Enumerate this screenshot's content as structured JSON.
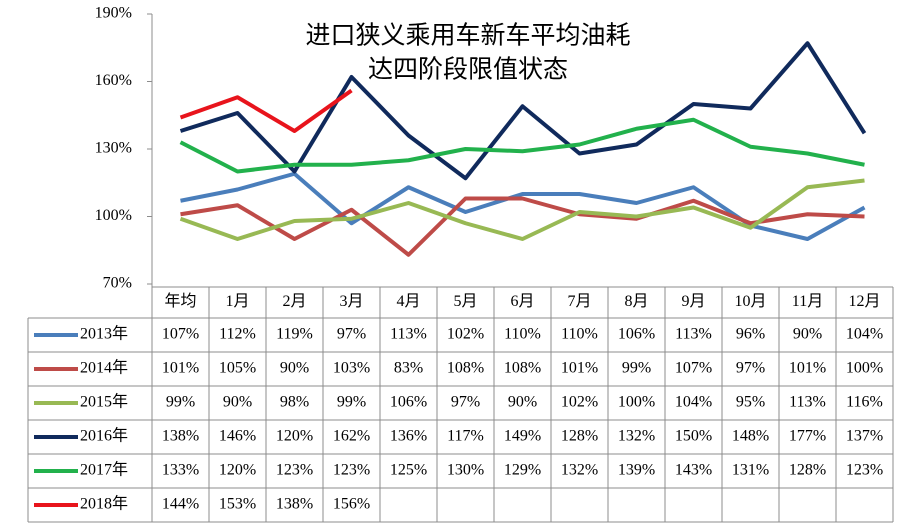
{
  "chart_data": {
    "type": "line",
    "title": [
      "进口狭义乘用车新车平均油耗",
      "达四阶段限值状态"
    ],
    "categories": [
      "年均",
      "1月",
      "2月",
      "3月",
      "4月",
      "5月",
      "6月",
      "7月",
      "8月",
      "9月",
      "10月",
      "11月",
      "12月"
    ],
    "ylim": [
      70,
      190
    ],
    "yticks": [
      {
        "value": 70,
        "label": "70%"
      },
      {
        "value": 100,
        "label": "100%"
      },
      {
        "value": 130,
        "label": "130%"
      },
      {
        "value": 160,
        "label": "160%"
      },
      {
        "value": 190,
        "label": "190%"
      }
    ],
    "grid": false,
    "series": [
      {
        "name": "2013年",
        "color": "#4a7ebb",
        "values": [
          107,
          112,
          119,
          97,
          113,
          102,
          110,
          110,
          106,
          113,
          96,
          90,
          104
        ],
        "value_labels": [
          "107%",
          "112%",
          "119%",
          "97%",
          "113%",
          "102%",
          "110%",
          "110%",
          "106%",
          "113%",
          "96%",
          "90%",
          "104%"
        ]
      },
      {
        "name": "2014年",
        "color": "#be4b48",
        "values": [
          101,
          105,
          90,
          103,
          83,
          108,
          108,
          101,
          99,
          107,
          97,
          101,
          100
        ],
        "value_labels": [
          "101%",
          "105%",
          "90%",
          "103%",
          "83%",
          "108%",
          "108%",
          "101%",
          "99%",
          "107%",
          "97%",
          "101%",
          "100%"
        ]
      },
      {
        "name": "2015年",
        "color": "#98b954",
        "values": [
          99,
          90,
          98,
          99,
          106,
          97,
          90,
          102,
          100,
          104,
          95,
          113,
          116
        ],
        "value_labels": [
          "99%",
          "90%",
          "98%",
          "99%",
          "106%",
          "97%",
          "90%",
          "102%",
          "100%",
          "104%",
          "95%",
          "113%",
          "116%"
        ]
      },
      {
        "name": "2016年",
        "color": "#102a5c",
        "values": [
          138,
          146,
          120,
          162,
          136,
          117,
          149,
          128,
          132,
          150,
          148,
          177,
          137
        ],
        "value_labels": [
          "138%",
          "146%",
          "120%",
          "162%",
          "136%",
          "117%",
          "149%",
          "128%",
          "132%",
          "150%",
          "148%",
          "177%",
          "137%"
        ]
      },
      {
        "name": "2017年",
        "color": "#22b14c",
        "values": [
          133,
          120,
          123,
          123,
          125,
          130,
          129,
          132,
          139,
          143,
          131,
          128,
          123
        ],
        "value_labels": [
          "133%",
          "120%",
          "123%",
          "123%",
          "125%",
          "130%",
          "129%",
          "132%",
          "139%",
          "143%",
          "131%",
          "128%",
          "123%"
        ]
      },
      {
        "name": "2018年",
        "color": "#e8141c",
        "values": [
          144,
          153,
          138,
          156,
          null,
          null,
          null,
          null,
          null,
          null,
          null,
          null,
          null
        ],
        "value_labels": [
          "144%",
          "153%",
          "138%",
          "156%",
          null,
          null,
          null,
          null,
          null,
          null,
          null,
          null,
          null
        ]
      }
    ]
  }
}
